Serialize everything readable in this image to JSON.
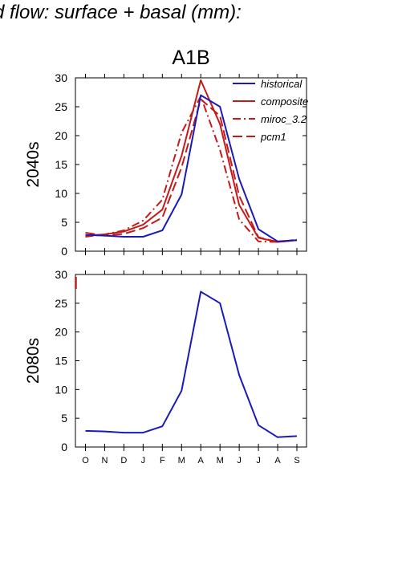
{
  "figure": {
    "title": "d flow: surface + basal (mm):"
  },
  "chart_data": [
    {
      "type": "line",
      "title": "A1B",
      "ylabel": "2040s",
      "ylim": [
        0,
        30
      ],
      "yticks": [
        "0",
        "5",
        "10",
        "15",
        "20",
        "25",
        "30"
      ],
      "categories": [
        "O",
        "N",
        "D",
        "J",
        "F",
        "M",
        "A",
        "M",
        "J",
        "J",
        "A",
        "S"
      ],
      "legend": {
        "position": "top-right"
      },
      "series": [
        {
          "name": "historical",
          "color": "#1a1ab8",
          "style": "solid",
          "in_legend": true,
          "values": [
            2.8,
            2.7,
            2.5,
            2.5,
            3.6,
            9.8,
            27.0,
            25.0,
            12.5,
            3.8,
            1.7,
            1.9
          ]
        },
        {
          "name": "composite",
          "color": "#c41a1a",
          "style": "solid",
          "in_legend": true,
          "values": [
            2.7,
            2.9,
            3.4,
            4.6,
            7.2,
            16.5,
            29.6,
            22.0,
            8.0,
            2.3,
            1.6,
            1.9
          ]
        },
        {
          "name": "miroc_3.2",
          "color": "#c41a1a",
          "style": "dashdot",
          "in_legend": true,
          "values": [
            2.5,
            2.9,
            3.6,
            5.3,
            8.9,
            20.5,
            26.8,
            17.5,
            5.5,
            1.7,
            1.6,
            2.0
          ]
        },
        {
          "name": "pcm1",
          "color": "#c41a1a",
          "style": "dash",
          "in_legend": true,
          "values": [
            3.2,
            2.7,
            3.0,
            4.0,
            5.8,
            14.5,
            26.3,
            23.4,
            9.6,
            2.4,
            1.6,
            1.9
          ]
        }
      ]
    },
    {
      "type": "line",
      "title": "",
      "ylabel": "2080s",
      "ylim": [
        0,
        30
      ],
      "yticks": [
        "0",
        "5",
        "10",
        "15",
        "20",
        "25",
        "30"
      ],
      "categories": [
        "O",
        "N",
        "D",
        "J",
        "F",
        "M",
        "A",
        "M",
        "J",
        "J",
        "A",
        "S"
      ],
      "series": [
        {
          "name": "historical",
          "color": "#1a1ab8",
          "style": "solid",
          "in_legend": false,
          "values": [
            2.8,
            2.7,
            2.5,
            2.5,
            3.6,
            9.8,
            27.0,
            25.0,
            12.5,
            3.8,
            1.7,
            1.9
          ]
        }
      ]
    }
  ]
}
